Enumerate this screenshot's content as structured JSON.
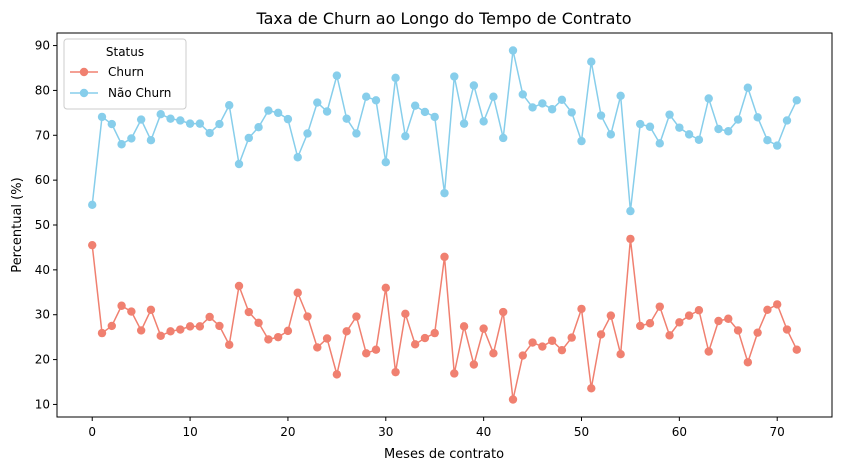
{
  "chart_data": {
    "type": "line",
    "title": "Taxa de Churn ao Longo do Tempo de Contrato",
    "xlabel": "Meses de contrato",
    "ylabel": "Percentual (%)",
    "xlim": [
      -3.6,
      75.6
    ],
    "ylim": [
      7.2,
      92.8
    ],
    "xticks": [
      0,
      10,
      20,
      30,
      40,
      50,
      60,
      70
    ],
    "yticks": [
      10,
      20,
      30,
      40,
      50,
      60,
      70,
      80,
      90
    ],
    "grid": false,
    "legend": {
      "title": "Status",
      "position": "top-left"
    },
    "x": [
      0,
      1,
      2,
      3,
      4,
      5,
      6,
      7,
      8,
      9,
      10,
      11,
      12,
      13,
      14,
      15,
      16,
      17,
      18,
      19,
      20,
      21,
      22,
      23,
      24,
      25,
      26,
      27,
      28,
      29,
      30,
      31,
      32,
      33,
      34,
      35,
      36,
      37,
      38,
      39,
      40,
      41,
      42,
      43,
      44,
      45,
      46,
      47,
      48,
      49,
      50,
      51,
      52,
      53,
      54,
      55,
      56,
      57,
      58,
      59,
      60,
      61,
      62,
      63,
      64,
      65,
      66,
      67,
      68,
      69,
      70,
      71,
      72
    ],
    "series": [
      {
        "name": "Churn",
        "color": "#f08070",
        "values": [
          45.5,
          25.9,
          27.5,
          32.0,
          30.7,
          26.5,
          31.1,
          25.3,
          26.3,
          26.7,
          27.4,
          27.4,
          29.5,
          27.5,
          23.3,
          36.4,
          30.6,
          28.2,
          24.5,
          25.0,
          26.4,
          34.9,
          29.6,
          22.7,
          24.7,
          16.7,
          26.3,
          29.6,
          21.4,
          22.2,
          36.0,
          17.2,
          30.2,
          23.4,
          24.8,
          25.9,
          42.9,
          16.9,
          27.4,
          18.9,
          26.9,
          21.4,
          30.6,
          11.1,
          20.9,
          23.8,
          22.9,
          24.2,
          22.1,
          24.9,
          31.3,
          13.6,
          25.6,
          29.8,
          21.2,
          46.9,
          27.5,
          28.1,
          31.8,
          25.4,
          28.3,
          29.8,
          31.0,
          21.8,
          28.6,
          29.1,
          26.5,
          19.4,
          26.0,
          31.1,
          32.3,
          26.7,
          22.2
        ]
      },
      {
        "name": "Não Churn",
        "color": "#87ceeb",
        "values": [
          54.5,
          74.1,
          72.5,
          68.0,
          69.3,
          73.5,
          68.9,
          74.7,
          73.7,
          73.3,
          72.6,
          72.6,
          70.5,
          72.5,
          76.7,
          63.6,
          69.4,
          71.8,
          75.5,
          75.0,
          73.6,
          65.1,
          70.4,
          77.3,
          75.3,
          83.3,
          73.7,
          70.4,
          78.6,
          77.8,
          64.0,
          82.8,
          69.8,
          76.6,
          75.2,
          74.1,
          57.1,
          83.1,
          72.6,
          81.1,
          73.1,
          78.6,
          69.4,
          88.9,
          79.1,
          76.2,
          77.1,
          75.8,
          77.9,
          75.1,
          68.7,
          86.4,
          74.4,
          70.2,
          78.8,
          53.1,
          72.5,
          71.9,
          68.2,
          74.6,
          71.7,
          70.2,
          69.0,
          78.2,
          71.4,
          70.9,
          73.5,
          80.6,
          74.0,
          68.9,
          67.7,
          73.3,
          77.8
        ]
      }
    ]
  }
}
